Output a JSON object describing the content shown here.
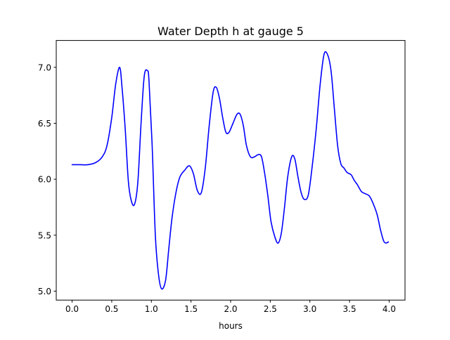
{
  "chart_data": {
    "type": "line",
    "title": "Water Depth h at gauge 5",
    "xlabel": "hours",
    "ylabel": "",
    "xlim": [
      -0.2,
      4.2
    ],
    "ylim": [
      4.92,
      7.24
    ],
    "xticks": [
      0.0,
      0.5,
      1.0,
      1.5,
      2.0,
      2.5,
      3.0,
      3.5,
      4.0
    ],
    "xtick_labels": [
      "0.0",
      "0.5",
      "1.0",
      "1.5",
      "2.0",
      "2.5",
      "3.0",
      "3.5",
      "4.0"
    ],
    "yticks": [
      5.0,
      5.5,
      6.0,
      6.5,
      7.0
    ],
    "ytick_labels": [
      "5.0",
      "5.5",
      "6.0",
      "6.5",
      "7.0"
    ],
    "grid": false,
    "legend": "none",
    "series": [
      {
        "color": "#0000ff",
        "x": [
          0.0,
          0.1,
          0.2,
          0.3,
          0.38,
          0.44,
          0.5,
          0.55,
          0.6,
          0.63,
          0.67,
          0.71,
          0.75,
          0.79,
          0.83,
          0.87,
          0.91,
          0.95,
          0.97,
          1.01,
          1.05,
          1.09,
          1.13,
          1.18,
          1.22,
          1.26,
          1.31,
          1.36,
          1.42,
          1.48,
          1.53,
          1.58,
          1.63,
          1.68,
          1.73,
          1.78,
          1.82,
          1.86,
          1.9,
          1.94,
          1.98,
          2.03,
          2.08,
          2.12,
          2.16,
          2.2,
          2.25,
          2.3,
          2.35,
          2.39,
          2.43,
          2.47,
          2.51,
          2.56,
          2.6,
          2.64,
          2.68,
          2.72,
          2.77,
          2.81,
          2.85,
          2.89,
          2.93,
          2.98,
          3.03,
          3.08,
          3.13,
          3.18,
          3.23,
          3.27,
          3.31,
          3.35,
          3.39,
          3.43,
          3.47,
          3.52,
          3.56,
          3.6,
          3.65,
          3.7,
          3.75,
          3.8,
          3.85,
          3.89,
          3.93,
          3.96,
          3.99
        ],
        "y": [
          6.13,
          6.13,
          6.13,
          6.15,
          6.2,
          6.3,
          6.55,
          6.85,
          7.0,
          6.82,
          6.45,
          5.98,
          5.8,
          5.78,
          5.98,
          6.5,
          6.92,
          6.97,
          6.88,
          6.3,
          5.5,
          5.15,
          5.02,
          5.1,
          5.38,
          5.65,
          5.88,
          6.02,
          6.08,
          6.12,
          6.05,
          5.9,
          5.88,
          6.1,
          6.48,
          6.78,
          6.82,
          6.72,
          6.55,
          6.42,
          6.42,
          6.5,
          6.58,
          6.58,
          6.48,
          6.3,
          6.2,
          6.2,
          6.22,
          6.2,
          6.05,
          5.85,
          5.62,
          5.48,
          5.43,
          5.52,
          5.75,
          6.02,
          6.2,
          6.18,
          6.02,
          5.88,
          5.82,
          5.86,
          6.12,
          6.45,
          6.85,
          7.12,
          7.1,
          6.95,
          6.62,
          6.3,
          6.14,
          6.1,
          6.06,
          6.04,
          5.99,
          5.95,
          5.89,
          5.87,
          5.85,
          5.78,
          5.68,
          5.55,
          5.45,
          5.43,
          5.44
        ]
      }
    ]
  }
}
